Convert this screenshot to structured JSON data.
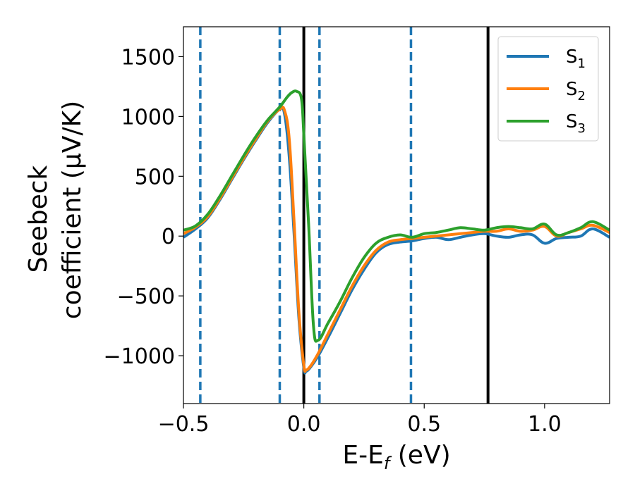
{
  "chart_data": {
    "type": "line",
    "xlabel": "E-E",
    "xlabel_sub": "f",
    "xlabel_unit": " (eV)",
    "ylabel_line1": "Seebeck",
    "ylabel_line2": "coefficient  (μV/K)",
    "xlim": [
      -0.5,
      1.27
    ],
    "ylim": [
      -1400,
      1750
    ],
    "xticks": [
      -0.5,
      0.0,
      0.5,
      1.0
    ],
    "xtick_labels": [
      "−0.5",
      "0.0",
      "0.5",
      "1.0"
    ],
    "yticks": [
      -1000,
      -500,
      0,
      500,
      1000,
      1500
    ],
    "ytick_labels": [
      "−1000",
      "−500",
      "0",
      "500",
      "1000",
      "1500"
    ],
    "grid": false,
    "legend_position": "top-right",
    "vlines": [
      {
        "x": -0.43,
        "style": "dashed",
        "color": "#1f77b4"
      },
      {
        "x": -0.1,
        "style": "dashed",
        "color": "#1f77b4"
      },
      {
        "x": 0.0,
        "style": "solid",
        "color": "#000000"
      },
      {
        "x": 0.065,
        "style": "dashed",
        "color": "#1f77b4"
      },
      {
        "x": 0.445,
        "style": "dashed",
        "color": "#1f77b4"
      },
      {
        "x": 0.765,
        "style": "solid",
        "color": "#000000"
      }
    ],
    "series": [
      {
        "name": "S",
        "name_sub": "1",
        "color": "#1f77b4",
        "x": [
          -0.5,
          -0.45,
          -0.4,
          -0.35,
          -0.3,
          -0.25,
          -0.2,
          -0.15,
          -0.1,
          -0.08,
          -0.06,
          -0.04,
          -0.02,
          0.0,
          0.01,
          0.03,
          0.06,
          0.1,
          0.15,
          0.2,
          0.25,
          0.3,
          0.35,
          0.4,
          0.45,
          0.5,
          0.55,
          0.6,
          0.65,
          0.7,
          0.75,
          0.8,
          0.85,
          0.9,
          0.95,
          1.0,
          1.05,
          1.1,
          1.15,
          1.2,
          1.27
        ],
        "y": [
          -10,
          60,
          150,
          300,
          470,
          640,
          800,
          950,
          1060,
          1020,
          650,
          0,
          -700,
          -1100,
          -1130,
          -1090,
          -1000,
          -850,
          -650,
          -450,
          -280,
          -140,
          -70,
          -50,
          -40,
          -20,
          -10,
          -30,
          -10,
          10,
          20,
          0,
          -10,
          10,
          10,
          -60,
          -20,
          -10,
          0,
          60,
          -10
        ]
      },
      {
        "name": "S",
        "name_sub": "2",
        "color": "#ff7f0e",
        "x": [
          -0.5,
          -0.45,
          -0.4,
          -0.35,
          -0.3,
          -0.25,
          -0.2,
          -0.15,
          -0.1,
          -0.08,
          -0.06,
          -0.04,
          -0.02,
          0.0,
          0.01,
          0.03,
          0.06,
          0.1,
          0.15,
          0.2,
          0.25,
          0.3,
          0.35,
          0.4,
          0.45,
          0.5,
          0.55,
          0.6,
          0.65,
          0.7,
          0.75,
          0.8,
          0.85,
          0.9,
          0.95,
          1.0,
          1.05,
          1.1,
          1.15,
          1.2,
          1.27
        ],
        "y": [
          20,
          75,
          160,
          310,
          480,
          650,
          810,
          960,
          1060,
          1050,
          800,
          100,
          -650,
          -1080,
          -1120,
          -1080,
          -980,
          -820,
          -620,
          -420,
          -250,
          -120,
          -50,
          -30,
          -20,
          -10,
          0,
          10,
          20,
          30,
          40,
          40,
          60,
          40,
          50,
          80,
          0,
          30,
          60,
          90,
          30
        ]
      },
      {
        "name": "S",
        "name_sub": "3",
        "color": "#2ca02c",
        "x": [
          -0.5,
          -0.45,
          -0.4,
          -0.35,
          -0.3,
          -0.25,
          -0.2,
          -0.15,
          -0.1,
          -0.07,
          -0.05,
          -0.03,
          -0.01,
          0.0,
          0.02,
          0.04,
          0.06,
          0.1,
          0.15,
          0.2,
          0.25,
          0.3,
          0.35,
          0.4,
          0.45,
          0.5,
          0.55,
          0.6,
          0.65,
          0.7,
          0.75,
          0.8,
          0.85,
          0.9,
          0.95,
          1.0,
          1.05,
          1.1,
          1.15,
          1.2,
          1.27
        ],
        "y": [
          50,
          85,
          180,
          330,
          500,
          670,
          830,
          970,
          1080,
          1160,
          1200,
          1210,
          1150,
          850,
          100,
          -750,
          -870,
          -730,
          -550,
          -350,
          -180,
          -60,
          -10,
          10,
          -10,
          20,
          30,
          50,
          70,
          60,
          50,
          70,
          80,
          70,
          60,
          100,
          10,
          30,
          70,
          120,
          50
        ]
      }
    ]
  }
}
